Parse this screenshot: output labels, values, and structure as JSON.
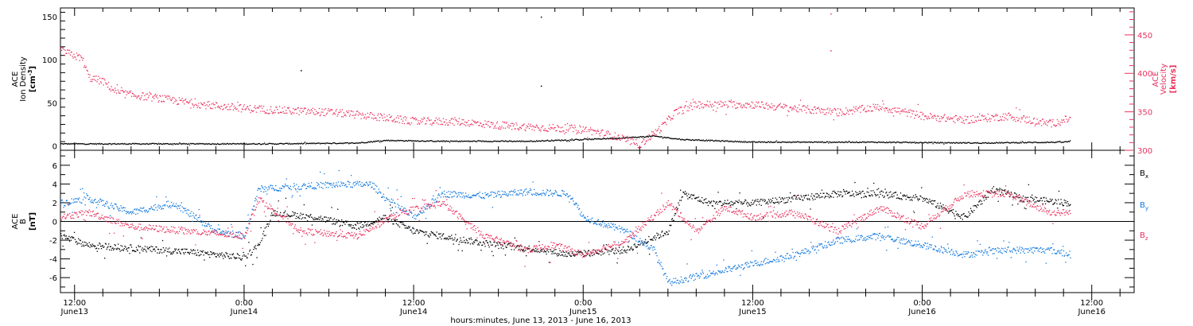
{
  "colors": {
    "black": "#000000",
    "pink": "#e8335f",
    "blue": "#1177dd"
  },
  "xaxis": {
    "title": "hours:minutes, June 13, 2013 - June 16, 2013",
    "start": "2013-06-13 11:00",
    "end": "2013-06-16 15:00",
    "ticks": [
      {
        "time": "2013-06-13 12:00",
        "top": "12:00",
        "bottom": "June13"
      },
      {
        "time": "2013-06-14 00:00",
        "top": "0:00",
        "bottom": "June14"
      },
      {
        "time": "2013-06-14 12:00",
        "top": "12:00",
        "bottom": "June14"
      },
      {
        "time": "2013-06-15 00:00",
        "top": "0:00",
        "bottom": "June15"
      },
      {
        "time": "2013-06-15 12:00",
        "top": "12:00",
        "bottom": "June15"
      },
      {
        "time": "2013-06-16 00:00",
        "top": "0:00",
        "bottom": "June16"
      },
      {
        "time": "2013-06-16 12:00",
        "top": "12:00",
        "bottom": "June16"
      }
    ]
  },
  "chart_data": [
    {
      "type": "scatter",
      "left_axis": {
        "label_lines": [
          "ACE",
          "Ion Density"
        ],
        "unit_base": "[cm",
        "unit_sup": "-3",
        "unit_end": "]",
        "range": [
          -5,
          160
        ],
        "ticks": [
          "0",
          "50",
          "100",
          "150"
        ],
        "tick_values": [
          0,
          50,
          100,
          150
        ]
      },
      "right_axis": {
        "label_lines": [
          "ACE",
          "Velocity"
        ],
        "unit": "[km/s]",
        "range": [
          300,
          485
        ],
        "ticks": [
          "300",
          "350",
          "400",
          "450"
        ],
        "tick_values": [
          300,
          350,
          400,
          450
        ]
      },
      "series": [
        {
          "color": "#000000",
          "axis": "left",
          "points": [
            [
              "2013-06-13 11:00",
              3
            ],
            [
              "2013-06-13 18:00",
              3
            ],
            [
              "2013-06-14 02:00",
              3
            ],
            [
              "2013-06-14 08:00",
              4
            ],
            [
              "2013-06-14 10:00",
              7
            ],
            [
              "2013-06-14 14:00",
              6
            ],
            [
              "2013-06-14 20:00",
              6
            ],
            [
              "2013-06-15 00:00",
              8
            ],
            [
              "2013-06-15 03:00",
              10
            ],
            [
              "2013-06-15 05:00",
              12
            ],
            [
              "2013-06-15 07:00",
              8
            ],
            [
              "2013-06-15 12:00",
              5
            ],
            [
              "2013-06-15 20:00",
              5
            ],
            [
              "2013-06-16 04:00",
              4
            ],
            [
              "2013-06-16 10:00",
              5
            ],
            [
              "2013-06-16 10:30",
              6
            ]
          ]
        },
        {
          "color": "#e8335f",
          "axis": "right",
          "points": [
            [
              "2013-06-13 11:00",
              430
            ],
            [
              "2013-06-13 12:30",
              420
            ],
            [
              "2013-06-13 13:00",
              395
            ],
            [
              "2013-06-13 14:00",
              390
            ],
            [
              "2013-06-13 15:00",
              375
            ],
            [
              "2013-06-13 18:00",
              368
            ],
            [
              "2013-06-13 21:00",
              360
            ],
            [
              "2013-06-14 00:00",
              355
            ],
            [
              "2013-06-14 03:00",
              352
            ],
            [
              "2013-06-14 06:00",
              350
            ],
            [
              "2013-06-14 09:00",
              345
            ],
            [
              "2013-06-14 12:00",
              338
            ],
            [
              "2013-06-14 15:00",
              338
            ],
            [
              "2013-06-14 18:00",
              333
            ],
            [
              "2013-06-14 21:00",
              330
            ],
            [
              "2013-06-15 00:00",
              328
            ],
            [
              "2013-06-15 02:00",
              320
            ],
            [
              "2013-06-15 04:00",
              308
            ],
            [
              "2013-06-15 05:30",
              330
            ],
            [
              "2013-06-15 06:30",
              350
            ],
            [
              "2013-06-15 08:00",
              360
            ],
            [
              "2013-06-15 12:00",
              360
            ],
            [
              "2013-06-15 15:00",
              355
            ],
            [
              "2013-06-15 18:00",
              350
            ],
            [
              "2013-06-15 21:00",
              357
            ],
            [
              "2013-06-16 00:00",
              345
            ],
            [
              "2013-06-16 03:00",
              340
            ],
            [
              "2013-06-16 06:00",
              345
            ],
            [
              "2013-06-16 09:00",
              335
            ],
            [
              "2013-06-16 10:30",
              342
            ]
          ]
        }
      ],
      "outliers": [
        {
          "series": 0,
          "time": "2013-06-14 04:00",
          "value": 88
        },
        {
          "series": 0,
          "time": "2013-06-14 21:00",
          "value": 150
        },
        {
          "series": 0,
          "time": "2013-06-14 21:00",
          "value": 70
        },
        {
          "series": 1,
          "time": "2013-06-15 17:30",
          "value": 478
        },
        {
          "series": 1,
          "time": "2013-06-15 17:30",
          "value": 430
        }
      ]
    },
    {
      "type": "scatter",
      "left_axis": {
        "label_lines": [
          "ACE",
          "B"
        ],
        "unit": "[nT]",
        "range": [
          -7.6,
          7.6
        ],
        "ticks": [
          "-6",
          "-4",
          "-2",
          "0",
          "2",
          "4",
          "6"
        ],
        "tick_values": [
          -6,
          -4,
          -2,
          0,
          2,
          4,
          6
        ]
      },
      "zero_line": 0,
      "series": [
        {
          "name": "B",
          "sub": "x",
          "color": "#000000",
          "points": [
            [
              "2013-06-13 11:00",
              -1.5
            ],
            [
              "2013-06-13 13:00",
              -2.5
            ],
            [
              "2013-06-13 16:00",
              -2.8
            ],
            [
              "2013-06-13 20:00",
              -3.2
            ],
            [
              "2013-06-14 00:00",
              -3.8
            ],
            [
              "2013-06-14 01:00",
              -2.5
            ],
            [
              "2013-06-14 02:00",
              1.0
            ],
            [
              "2013-06-14 05:00",
              0.5
            ],
            [
              "2013-06-14 08:00",
              -0.5
            ],
            [
              "2013-06-14 10:00",
              0.5
            ],
            [
              "2013-06-14 12:00",
              -1.0
            ],
            [
              "2013-06-14 15:00",
              -1.8
            ],
            [
              "2013-06-14 18:00",
              -2.5
            ],
            [
              "2013-06-14 21:00",
              -3.0
            ],
            [
              "2013-06-14 23:00",
              -3.5
            ],
            [
              "2013-06-15 03:00",
              -3.0
            ],
            [
              "2013-06-15 06:00",
              -1.0
            ],
            [
              "2013-06-15 07:00",
              3.0
            ],
            [
              "2013-06-15 09:00",
              2.0
            ],
            [
              "2013-06-15 12:00",
              2.0
            ],
            [
              "2013-06-15 15:00",
              2.5
            ],
            [
              "2013-06-15 18:00",
              3.0
            ],
            [
              "2013-06-15 21:00",
              3.0
            ],
            [
              "2013-06-16 00:00",
              2.5
            ],
            [
              "2013-06-16 03:00",
              0.5
            ],
            [
              "2013-06-16 05:00",
              3.5
            ],
            [
              "2013-06-16 07:00",
              2.5
            ],
            [
              "2013-06-16 10:30",
              2.0
            ]
          ]
        },
        {
          "name": "B",
          "sub": "y",
          "color": "#1177dd",
          "points": [
            [
              "2013-06-13 11:00",
              2.0
            ],
            [
              "2013-06-13 13:00",
              2.5
            ],
            [
              "2013-06-13 16:00",
              1.0
            ],
            [
              "2013-06-13 19:00",
              2.0
            ],
            [
              "2013-06-13 22:00",
              -1.0
            ],
            [
              "2013-06-14 00:00",
              -1.5
            ],
            [
              "2013-06-14 01:00",
              3.5
            ],
            [
              "2013-06-14 04:00",
              3.8
            ],
            [
              "2013-06-14 07:00",
              4.0
            ],
            [
              "2013-06-14 09:00",
              4.0
            ],
            [
              "2013-06-14 10:00",
              2.5
            ],
            [
              "2013-06-14 12:00",
              0.5
            ],
            [
              "2013-06-14 14:00",
              3.0
            ],
            [
              "2013-06-14 17:00",
              2.8
            ],
            [
              "2013-06-14 20:00",
              3.2
            ],
            [
              "2013-06-14 23:00",
              3.0
            ],
            [
              "2013-06-15 00:00",
              0.5
            ],
            [
              "2013-06-15 03:00",
              -1.0
            ],
            [
              "2013-06-15 05:00",
              -3.0
            ],
            [
              "2013-06-15 06:00",
              -6.5
            ],
            [
              "2013-06-15 09:00",
              -5.5
            ],
            [
              "2013-06-15 12:00",
              -4.5
            ],
            [
              "2013-06-15 15:00",
              -3.5
            ],
            [
              "2013-06-15 18:00",
              -2.0
            ],
            [
              "2013-06-15 21:00",
              -1.5
            ],
            [
              "2013-06-16 00:00",
              -2.5
            ],
            [
              "2013-06-16 03:00",
              -3.5
            ],
            [
              "2013-06-16 06:00",
              -3.0
            ],
            [
              "2013-06-16 09:00",
              -3.0
            ],
            [
              "2013-06-16 10:30",
              -3.5
            ]
          ]
        },
        {
          "name": "B",
          "sub": "z",
          "color": "#e8335f",
          "points": [
            [
              "2013-06-13 11:00",
              0.5
            ],
            [
              "2013-06-13 13:00",
              1.0
            ],
            [
              "2013-06-13 16:00",
              -0.5
            ],
            [
              "2013-06-13 20:00",
              -1.0
            ],
            [
              "2013-06-14 00:00",
              -1.5
            ],
            [
              "2013-06-14 01:00",
              2.5
            ],
            [
              "2013-06-14 04:00",
              -1.0
            ],
            [
              "2013-06-14 08:00",
              -1.5
            ],
            [
              "2013-06-14 11:00",
              1.0
            ],
            [
              "2013-06-14 14:00",
              2.0
            ],
            [
              "2013-06-14 17:00",
              -1.5
            ],
            [
              "2013-06-14 20:00",
              -3.0
            ],
            [
              "2013-06-14 22:00",
              -2.5
            ],
            [
              "2013-06-15 00:00",
              -3.5
            ],
            [
              "2013-06-15 03:00",
              -2.0
            ],
            [
              "2013-06-15 06:00",
              2.0
            ],
            [
              "2013-06-15 08:00",
              -1.0
            ],
            [
              "2013-06-15 10:00",
              1.5
            ],
            [
              "2013-06-15 12:00",
              0.5
            ],
            [
              "2013-06-15 15:00",
              1.0
            ],
            [
              "2013-06-15 18:00",
              -1.0
            ],
            [
              "2013-06-15 21:00",
              1.5
            ],
            [
              "2013-06-16 00:00",
              -0.5
            ],
            [
              "2013-06-16 03:00",
              3.0
            ],
            [
              "2013-06-16 06:00",
              3.0
            ],
            [
              "2013-06-16 09:00",
              1.0
            ],
            [
              "2013-06-16 10:30",
              1.0
            ]
          ]
        }
      ]
    }
  ]
}
